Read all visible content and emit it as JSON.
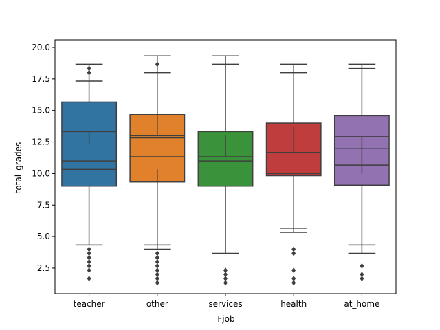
{
  "chart_data": {
    "type": "boxplot",
    "xlabel": "Fjob",
    "ylabel": "total_grades",
    "ylim": [
      0.48,
      20.6
    ],
    "yticks": [
      2.5,
      5.0,
      7.5,
      10.0,
      12.5,
      15.0,
      17.5,
      20.0
    ],
    "ytick_labels": [
      "2.5",
      "5.0",
      "7.5",
      "10.0",
      "12.5",
      "15.0",
      "17.5",
      "20.0"
    ],
    "grid": false,
    "categories": [
      "teacher",
      "other",
      "services",
      "health",
      "at_home"
    ],
    "colors": [
      "#3274a1",
      "#e1812c",
      "#3a923a",
      "#c03d3e",
      "#9372b2"
    ],
    "boxes": [
      {
        "category": "teacher",
        "q1": 9.0,
        "q3": 15.67,
        "medians": [
          11.0,
          13.33,
          10.33
        ],
        "whisker_low": 4.33,
        "whisker_high": 18.67,
        "extra_whisker_low": [],
        "extra_whisker_high": [
          17.33
        ],
        "whisker_stem_segments": [
          [
            12.33,
            13.33
          ]
        ],
        "outliers": [
          4.0,
          3.67,
          3.33,
          3.0,
          2.67,
          2.33,
          1.67,
          18.0,
          18.33
        ]
      },
      {
        "category": "other",
        "q1": 9.33,
        "q3": 14.67,
        "medians": [
          11.33,
          12.83,
          13.0
        ],
        "whisker_low": 4.0,
        "whisker_high": 19.33,
        "extra_whisker_low": [
          4.33
        ],
        "extra_whisker_high": [
          18.0
        ],
        "whisker_stem_segments": [
          [
            9.33,
            10.33
          ],
          [
            13.0,
            14.67
          ]
        ],
        "outliers": [
          3.67,
          3.33,
          3.0,
          2.67,
          2.33,
          2.0,
          1.67,
          1.33,
          18.67
        ]
      },
      {
        "category": "services",
        "q1": 9.0,
        "q3": 13.33,
        "medians": [
          11.0,
          11.33
        ],
        "whisker_low": 3.67,
        "whisker_high": 19.33,
        "extra_whisker_low": [],
        "extra_whisker_high": [
          18.67
        ],
        "whisker_stem_segments": [
          [
            11.33,
            13.0
          ]
        ],
        "outliers": [
          2.33,
          2.0,
          1.67,
          1.33
        ]
      },
      {
        "category": "health",
        "q1": 9.83,
        "q3": 14.0,
        "medians": [
          10.0,
          11.67
        ],
        "whisker_low": 5.33,
        "whisker_high": 18.67,
        "extra_whisker_low": [
          5.67
        ],
        "extra_whisker_high": [
          18.0
        ],
        "whisker_stem_segments": [
          [
            11.67,
            13.67
          ]
        ],
        "outliers": [
          4.0,
          3.67,
          2.33,
          1.67,
          1.33
        ]
      },
      {
        "category": "at_home",
        "q1": 9.08,
        "q3": 14.58,
        "medians": [
          10.67,
          12.0,
          12.92
        ],
        "whisker_low": 3.67,
        "whisker_high": 18.67,
        "extra_whisker_low": [
          4.33
        ],
        "extra_whisker_high": [
          18.33
        ],
        "whisker_stem_segments": [
          [
            10.0,
            12.92
          ]
        ],
        "outliers": [
          2.67,
          2.0,
          1.67
        ]
      }
    ]
  }
}
